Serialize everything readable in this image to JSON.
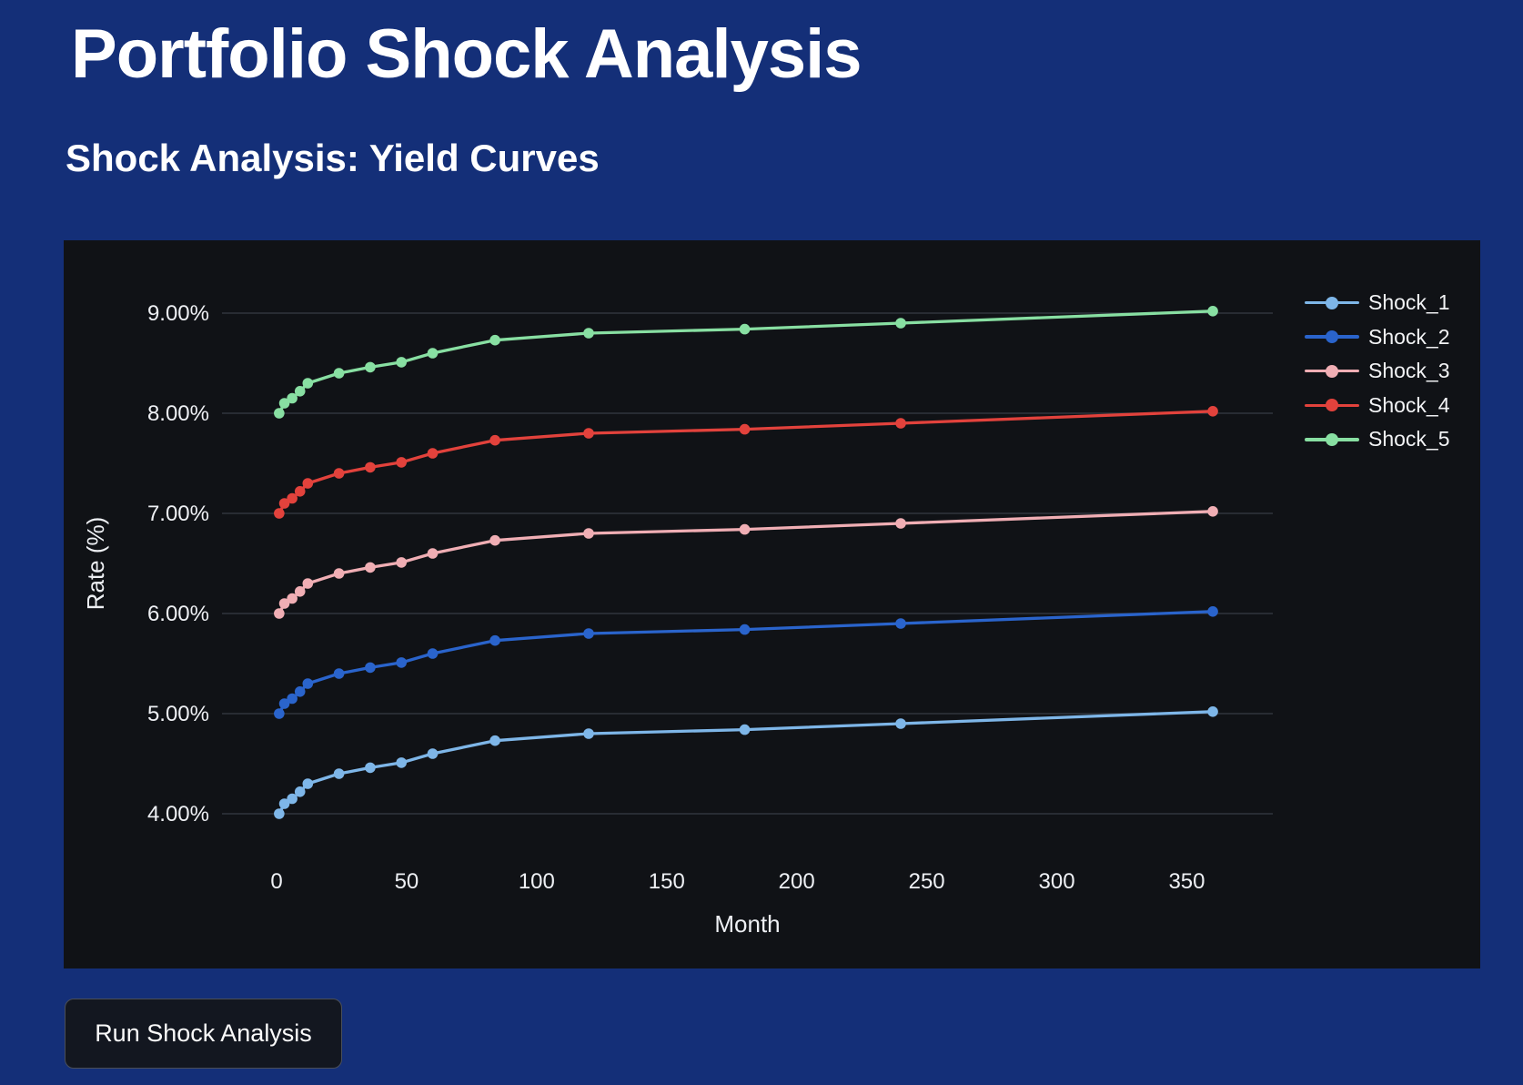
{
  "page": {
    "title": "Portfolio Shock Analysis",
    "subtitle": "Shock Analysis: Yield Curves",
    "button_label": "Run Shock Analysis"
  },
  "colors": {
    "page_bg": "#142f78",
    "panel_bg": "#101216",
    "grid": "#31353d",
    "tick_text": "#eef0f4",
    "button_bg": "#131720",
    "button_border": "#4a4f58"
  },
  "chart_data": {
    "type": "line",
    "title": "",
    "xlabel": "Month",
    "ylabel": "Rate (%)",
    "grid": "horizontal",
    "legend_position": "right-top",
    "xlim": [
      -20,
      385
    ],
    "ylim": [
      3.7,
      9.4
    ],
    "x": [
      1,
      3,
      6,
      9,
      12,
      24,
      36,
      48,
      60,
      84,
      120,
      180,
      240,
      360
    ],
    "xticks": [
      0,
      50,
      100,
      150,
      200,
      250,
      300,
      350
    ],
    "xtick_labels": [
      "0",
      "50",
      "100",
      "150",
      "200",
      "250",
      "300",
      "350"
    ],
    "yticks": [
      4,
      5,
      6,
      7,
      8,
      9
    ],
    "ytick_labels": [
      "4.00%",
      "5.00%",
      "6.00%",
      "7.00%",
      "8.00%",
      "9.00%"
    ],
    "series": [
      {
        "name": "Shock_1",
        "color": "#7eb6e8",
        "values": [
          4.0,
          4.1,
          4.15,
          4.22,
          4.3,
          4.4,
          4.46,
          4.51,
          4.6,
          4.73,
          4.8,
          4.84,
          4.9,
          5.02
        ]
      },
      {
        "name": "Shock_2",
        "color": "#2a64cc",
        "values": [
          5.0,
          5.1,
          5.15,
          5.22,
          5.3,
          5.4,
          5.46,
          5.51,
          5.6,
          5.73,
          5.8,
          5.84,
          5.9,
          6.02
        ]
      },
      {
        "name": "Shock_3",
        "color": "#f0aeb4",
        "values": [
          6.0,
          6.1,
          6.15,
          6.22,
          6.3,
          6.4,
          6.46,
          6.51,
          6.6,
          6.73,
          6.8,
          6.84,
          6.9,
          7.02
        ]
      },
      {
        "name": "Shock_4",
        "color": "#e2423c",
        "values": [
          7.0,
          7.1,
          7.15,
          7.22,
          7.3,
          7.4,
          7.46,
          7.51,
          7.6,
          7.73,
          7.8,
          7.84,
          7.9,
          8.02
        ]
      },
      {
        "name": "Shock_5",
        "color": "#88dfa2",
        "values": [
          8.0,
          8.1,
          8.15,
          8.22,
          8.3,
          8.4,
          8.46,
          8.51,
          8.6,
          8.73,
          8.8,
          8.84,
          8.9,
          9.02
        ]
      }
    ]
  }
}
